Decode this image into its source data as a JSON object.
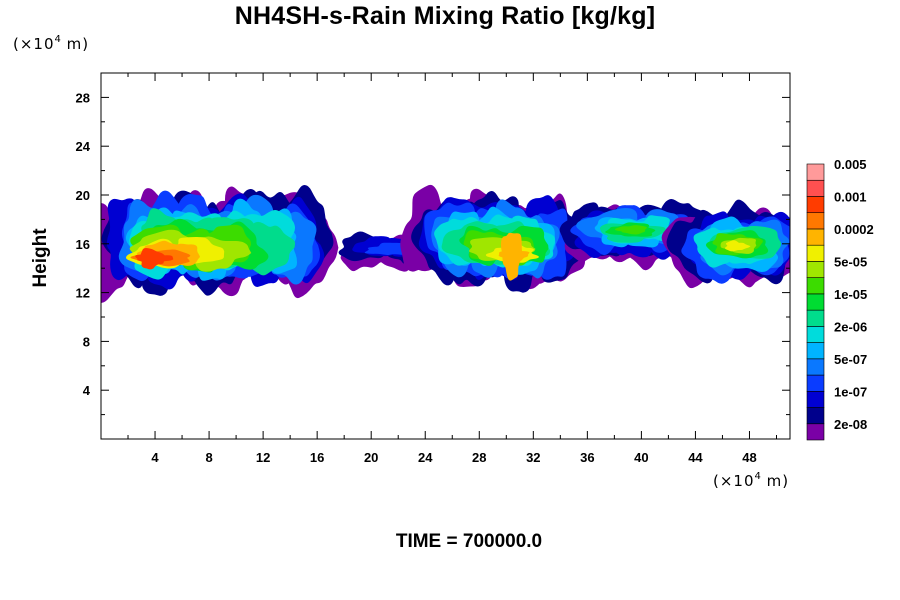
{
  "title": "NH4SH-s-Rain Mixing Ratio [kg/kg]",
  "time_label": "TIME = 700000.0",
  "y_unit": {
    "prefix": "(×10",
    "exp": "4",
    "suffix": " m)"
  },
  "x_unit": {
    "prefix": "(×10",
    "exp": "4",
    "suffix": " m)"
  },
  "chart_data": {
    "type": "heatmap",
    "title": "NH4SH-s-Rain Mixing Ratio [kg/kg]",
    "ylabel": "Height",
    "xlabel": "",
    "x_unit": "×10^4 m",
    "y_unit": "×10^4 m",
    "xlim": [
      0,
      51
    ],
    "ylim": [
      0,
      30
    ],
    "x_ticks": [
      4,
      8,
      12,
      16,
      20,
      24,
      28,
      32,
      36,
      40,
      44,
      48
    ],
    "y_ticks": [
      4,
      8,
      12,
      16,
      20,
      24,
      28
    ],
    "colorbar": {
      "colors": [
        "#7a00a6",
        "#00008c",
        "#0000d2",
        "#0a3cff",
        "#0a78ff",
        "#00b4ff",
        "#00dcdc",
        "#00dc8c",
        "#00dc32",
        "#3cdc00",
        "#a0e600",
        "#f0f000",
        "#ffb400",
        "#ff7800",
        "#ff3c00",
        "#ff5050",
        "#ff9a9a"
      ],
      "tick_labels": [
        "2e-08",
        "1e-07",
        "5e-07",
        "2e-06",
        "1e-05",
        "5e-05",
        "0.0002",
        "0.001",
        "0.005"
      ]
    },
    "regions": [
      {
        "x": [
          0.0,
          16.8
        ],
        "y": [
          12.6,
          19.7
        ],
        "peak_level": 14,
        "peak_x": [
          3.0,
          4.5
        ],
        "peak_y": [
          14.0,
          15.6
        ],
        "peak_value": "0.001"
      },
      {
        "x": [
          18.2,
          24.6
        ],
        "y": [
          14.3,
          16.9
        ],
        "peak_level": 3,
        "peak_value": "5e-07"
      },
      {
        "x": [
          23.3,
          35.1
        ],
        "y": [
          12.9,
          19.7
        ],
        "peak_level": 12,
        "peak_x": [
          29.8,
          31.0
        ],
        "peak_y": [
          13.2,
          17.1
        ],
        "peak_value": "0.0002"
      },
      {
        "x": [
          34.9,
          44.0
        ],
        "y": [
          15.0,
          19.2
        ],
        "peak_level": 9,
        "peak_value": "1e-05"
      },
      {
        "x": [
          43.2,
          51.0
        ],
        "y": [
          13.0,
          18.6
        ],
        "peak_level": 11,
        "peak_value": "5e-05"
      }
    ]
  }
}
